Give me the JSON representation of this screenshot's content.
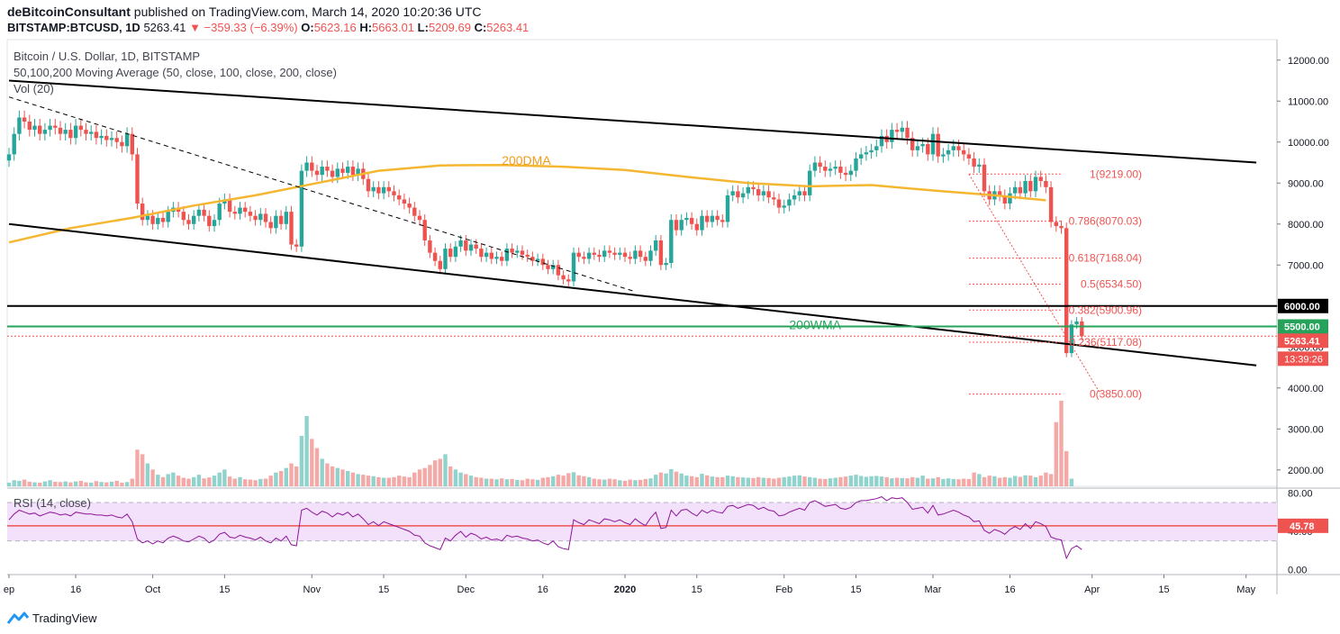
{
  "header": {
    "author": "deBitcoinConsultant",
    "published_text": "published on TradingView.com, March 14, 2020 10:20:36 UTC",
    "symbol": "BITSTAMP:BTCUSD, 1D",
    "last": "5263.41",
    "change": "▼ −359.33 (−6.39%)",
    "o_label": "O:",
    "o_value": "5623.16",
    "h_label": "H:",
    "h_value": "5663.01",
    "l_label": "L:",
    "l_value": "5209.69",
    "c_label": "C:",
    "c_value": "5263.41"
  },
  "legend": {
    "title": "Bitcoin / U.S. Dollar, 1D, BITSTAMP",
    "ma": "50,100,200 Moving Average (50, close, 100, close, 200, close)",
    "vol": "Vol (20)",
    "rsi": "RSI (14, close)"
  },
  "footer": {
    "brand": "TradingView"
  },
  "colors": {
    "up": "#26a69a",
    "down": "#ef5350",
    "ma200": "#f5b731",
    "wma": "#26a35a",
    "rsi_line": "#8e1599",
    "rsi_band": "#f3e0fb",
    "trend": "#000000"
  },
  "chart_data": {
    "type": "candlestick",
    "price_axis": {
      "ylim": [
        1600,
        12500
      ],
      "ticks": [
        "12000.00",
        "11000.00",
        "10000.00",
        "9000.00",
        "8000.00",
        "7000.00",
        "6000.00",
        "5000.00",
        "4000.00",
        "3000.00",
        "2000.00"
      ]
    },
    "rsi_axis": {
      "ylim": [
        -5,
        85
      ],
      "ticks": [
        "80.00",
        "40.00",
        "0.00"
      ],
      "overbought": 70,
      "oversold": 30,
      "current": "45.78"
    },
    "x_axis_labels": [
      {
        "label": "ep",
        "day": 0
      },
      {
        "label": "16",
        "day": 13
      },
      {
        "label": "Oct",
        "day": 28
      },
      {
        "label": "15",
        "day": 42
      },
      {
        "label": "Nov",
        "day": 59
      },
      {
        "label": "15",
        "day": 73
      },
      {
        "label": "Dec",
        "day": 89
      },
      {
        "label": "16",
        "day": 104
      },
      {
        "label": "2020",
        "day": 120
      },
      {
        "label": "15",
        "day": 134
      },
      {
        "label": "Feb",
        "day": 151
      },
      {
        "label": "15",
        "day": 165
      },
      {
        "label": "Mar",
        "day": 180
      },
      {
        "label": "16",
        "day": 195
      },
      {
        "label": "Apr",
        "day": 211
      },
      {
        "label": "15",
        "day": 225
      },
      {
        "label": "May",
        "day": 241
      }
    ],
    "closes": [
      9700,
      10200,
      10600,
      10500,
      10300,
      10400,
      10200,
      10300,
      10400,
      10350,
      10200,
      10300,
      10100,
      10400,
      10300,
      10200,
      10250,
      10100,
      10150,
      10050,
      10100,
      10000,
      9900,
      10200,
      9700,
      8500,
      8100,
      8200,
      8000,
      8150,
      8050,
      8300,
      8400,
      8300,
      8100,
      8000,
      8200,
      8350,
      8200,
      7950,
      8100,
      8500,
      8600,
      8300,
      8250,
      8400,
      8300,
      8200,
      8100,
      8250,
      8050,
      7900,
      8200,
      8000,
      8300,
      7500,
      7450,
      9300,
      9500,
      9300,
      9200,
      9400,
      9300,
      9150,
      9350,
      9250,
      9400,
      9200,
      9350,
      9100,
      8800,
      8900,
      8750,
      8900,
      8800,
      8700,
      8600,
      8500,
      8400,
      8200,
      8100,
      7600,
      7300,
      7100,
      6900,
      7400,
      7200,
      7450,
      7600,
      7350,
      7500,
      7400,
      7200,
      7300,
      7150,
      7200,
      7100,
      7400,
      7300,
      7350,
      7250,
      7200,
      7100,
      7150,
      7000,
      6900,
      7000,
      6750,
      6650,
      6600,
      7300,
      7200,
      7150,
      7300,
      7250,
      7200,
      7350,
      7300,
      7250,
      7300,
      7200,
      7150,
      7350,
      7200,
      7100,
      7350,
      7600,
      7000,
      7050,
      8100,
      7850,
      8100,
      8150,
      8000,
      7850,
      8200,
      8050,
      8200,
      8100,
      8050,
      8700,
      8800,
      8650,
      8750,
      8900,
      8850,
      8700,
      8800,
      8650,
      8600,
      8400,
      8450,
      8600,
      8700,
      8800,
      8700,
      9300,
      9500,
      9400,
      9300,
      9350,
      9400,
      9250,
      9200,
      9300,
      9600,
      9700,
      9750,
      9800,
      9900,
      10150,
      10000,
      10300,
      10250,
      10350,
      10100,
      9800,
      9900,
      9950,
      9700,
      10200,
      9650,
      9700,
      9800,
      9900,
      9800,
      9700,
      9600,
      9400,
      9450,
      8800,
      8600,
      8800,
      8700,
      8500,
      8750,
      8900,
      8750,
      9050,
      8800,
      9150,
      9050,
      8900,
      8050,
      7950,
      7900,
      4850,
      5550,
      5623,
      5263
    ],
    "ma200": [
      {
        "day": 0,
        "value": 7550
      },
      {
        "day": 12,
        "value": 7900
      },
      {
        "day": 24,
        "value": 8150
      },
      {
        "day": 36,
        "value": 8450
      },
      {
        "day": 48,
        "value": 8700
      },
      {
        "day": 60,
        "value": 9000
      },
      {
        "day": 72,
        "value": 9300
      },
      {
        "day": 84,
        "value": 9430
      },
      {
        "day": 96,
        "value": 9440
      },
      {
        "day": 108,
        "value": 9400
      },
      {
        "day": 120,
        "value": 9320
      },
      {
        "day": 132,
        "value": 9150
      },
      {
        "day": 144,
        "value": 9000
      },
      {
        "day": 156,
        "value": 8920
      },
      {
        "day": 168,
        "value": 8950
      },
      {
        "day": 180,
        "value": 8820
      },
      {
        "day": 192,
        "value": 8700
      },
      {
        "day": 202,
        "value": 8580
      }
    ],
    "rsi": [
      52,
      58,
      62,
      60,
      58,
      59,
      56,
      58,
      60,
      59,
      57,
      58,
      56,
      60,
      59,
      58,
      58,
      57,
      57,
      56,
      57,
      55,
      54,
      58,
      50,
      32,
      28,
      30,
      27,
      30,
      28,
      33,
      35,
      33,
      30,
      29,
      32,
      35,
      33,
      28,
      31,
      37,
      39,
      34,
      33,
      36,
      34,
      33,
      31,
      34,
      30,
      28,
      33,
      30,
      35,
      26,
      25,
      62,
      64,
      60,
      57,
      61,
      59,
      55,
      59,
      57,
      60,
      55,
      58,
      53,
      47,
      50,
      46,
      50,
      48,
      46,
      44,
      42,
      40,
      36,
      35,
      28,
      25,
      23,
      21,
      33,
      30,
      36,
      40,
      34,
      38,
      36,
      32,
      34,
      31,
      32,
      30,
      36,
      34,
      35,
      33,
      32,
      30,
      31,
      28,
      26,
      30,
      24,
      22,
      21,
      52,
      49,
      47,
      52,
      50,
      48,
      53,
      52,
      50,
      52,
      49,
      47,
      53,
      49,
      46,
      54,
      60,
      43,
      44,
      62,
      56,
      62,
      63,
      59,
      56,
      62,
      59,
      62,
      60,
      59,
      66,
      67,
      64,
      66,
      68,
      67,
      63,
      65,
      62,
      61,
      56,
      57,
      60,
      62,
      64,
      62,
      70,
      72,
      69,
      66,
      67,
      68,
      64,
      63,
      65,
      70,
      72,
      72,
      73,
      74,
      76,
      72,
      75,
      74,
      75,
      70,
      63,
      64,
      65,
      59,
      67,
      57,
      58,
      60,
      62,
      60,
      57,
      55,
      50,
      51,
      41,
      38,
      42,
      40,
      37,
      42,
      45,
      42,
      48,
      43,
      50,
      48,
      45,
      34,
      32,
      31,
      12,
      22,
      25,
      21
    ],
    "volume": [
      1.2,
      2.0,
      1.8,
      2.2,
      1.5,
      1.3,
      1.2,
      1.6,
      2.0,
      1.5,
      1.4,
      1.6,
      1.3,
      1.6,
      1.8,
      1.3,
      1.2,
      1.7,
      1.4,
      1.3,
      1.5,
      1.8,
      1.2,
      1.4,
      2.5,
      12,
      10.5,
      7.5,
      5.5,
      3.8,
      3.0,
      4.0,
      4.5,
      3.5,
      2.8,
      2.5,
      3.0,
      3.8,
      2.6,
      2.9,
      3.5,
      4.5,
      5.5,
      3.2,
      2.5,
      3.0,
      2.3,
      2.2,
      2.0,
      2.4,
      2.5,
      3.5,
      4.5,
      5.0,
      6.0,
      7.5,
      6.5,
      16.5,
      23,
      15.5,
      12.5,
      9,
      7.5,
      6.5,
      6,
      5.5,
      5,
      4.5,
      4.0,
      3.8,
      3.5,
      3.3,
      3.0,
      2.8,
      2.8,
      3.0,
      3.5,
      3.2,
      3.0,
      4.5,
      5.5,
      6,
      7,
      8.5,
      9,
      10.5,
      6.5,
      5.5,
      4.5,
      4,
      3.5,
      3,
      2.8,
      2.5,
      2.5,
      2.3,
      2.6,
      2.3,
      2.4,
      2.1,
      2.0,
      2.5,
      2.3,
      2.1,
      2.8,
      3.0,
      3.3,
      3.8,
      3.5,
      4.3,
      4.6,
      3.6,
      3.3,
      3.0,
      2.5,
      2.3,
      2.2,
      2.5,
      2.3,
      2.0,
      1.8,
      2.2,
      2.0,
      2.1,
      2.4,
      2.6,
      3.8,
      4.5,
      4.2,
      5.6,
      4.8,
      4.2,
      3.5,
      3.3,
      3.0,
      4.1,
      3.6,
      3.2,
      3.0,
      3.0,
      3.5,
      3.3,
      3.0,
      2.9,
      2.8,
      2.7,
      3.0,
      2.8,
      2.7,
      2.5,
      2.8,
      3.0,
      3.2,
      3.5,
      3.6,
      3.2,
      3.0,
      2.8,
      2.5,
      2.4,
      2.6,
      2.8,
      3.0,
      3.2,
      3.5,
      3.8,
      3.4,
      3.1,
      3.3,
      3.4,
      3.2,
      3.0,
      2.6,
      2.8,
      2.7,
      2.6,
      3.0,
      2.8,
      3.5,
      2.5,
      2.6,
      3.0,
      2.4,
      2.6,
      2.4,
      2.3,
      2.5,
      2.4,
      4.5,
      4.0,
      3.0,
      3.5,
      3.3,
      2.8,
      3.0,
      2.8,
      3.4,
      3.1,
      3.6,
      3.5,
      3.0,
      3.5,
      4.5,
      4.0,
      21,
      28,
      11.5,
      2.5
    ],
    "volume_max": 28,
    "trendlines": [
      {
        "name": "upper-channel",
        "from": {
          "day": 0,
          "value": 11500
        },
        "to": {
          "day": 243,
          "value": 9500
        },
        "style": "solid"
      },
      {
        "name": "lower-channel",
        "from": {
          "day": 0,
          "value": 8000
        },
        "to": {
          "day": 243,
          "value": 4550
        },
        "style": "solid"
      },
      {
        "name": "dashed-downtrend",
        "from": {
          "day": 0,
          "value": 11100
        },
        "to": {
          "day": 122,
          "value": 6350
        },
        "style": "dashed"
      }
    ],
    "levels": [
      {
        "name": "resistance-6000",
        "value": 6000,
        "label": "6000.00",
        "color": "#000000"
      },
      {
        "name": "support-5500",
        "value": 5500,
        "label": "5500.00",
        "color": "#26a35a"
      },
      {
        "name": "last-price",
        "value": 5263.41,
        "label": "5263.41",
        "color": "#ef5350",
        "dotted": true
      }
    ],
    "countdown": "13:39:26",
    "fib": {
      "from_day": 187,
      "to_day": 203,
      "levels": [
        {
          "ratio": "1",
          "value": 9219.0,
          "label": "1(9219.00)"
        },
        {
          "ratio": "0.786",
          "value": 8070.03,
          "label": "0.786(8070.03)"
        },
        {
          "ratio": "0.618",
          "value": 7168.04,
          "label": "0.618(7168.04)"
        },
        {
          "ratio": "0.5",
          "value": 6534.5,
          "label": "0.5(6534.50)"
        },
        {
          "ratio": "0.382",
          "value": 5900.96,
          "label": "0.382(5900.96)"
        },
        {
          "ratio": "0.236",
          "value": 5117.08,
          "label": "0.236(5117.08)"
        },
        {
          "ratio": "0",
          "value": 3850.0,
          "label": "0(3850.00)"
        }
      ]
    },
    "annotations": [
      {
        "text": "200DMA",
        "day": 96,
        "value": 9450,
        "color": "#f09a1a"
      },
      {
        "text": "200WMA",
        "day": 152,
        "value": 5430,
        "color": "#26a35a"
      }
    ]
  }
}
